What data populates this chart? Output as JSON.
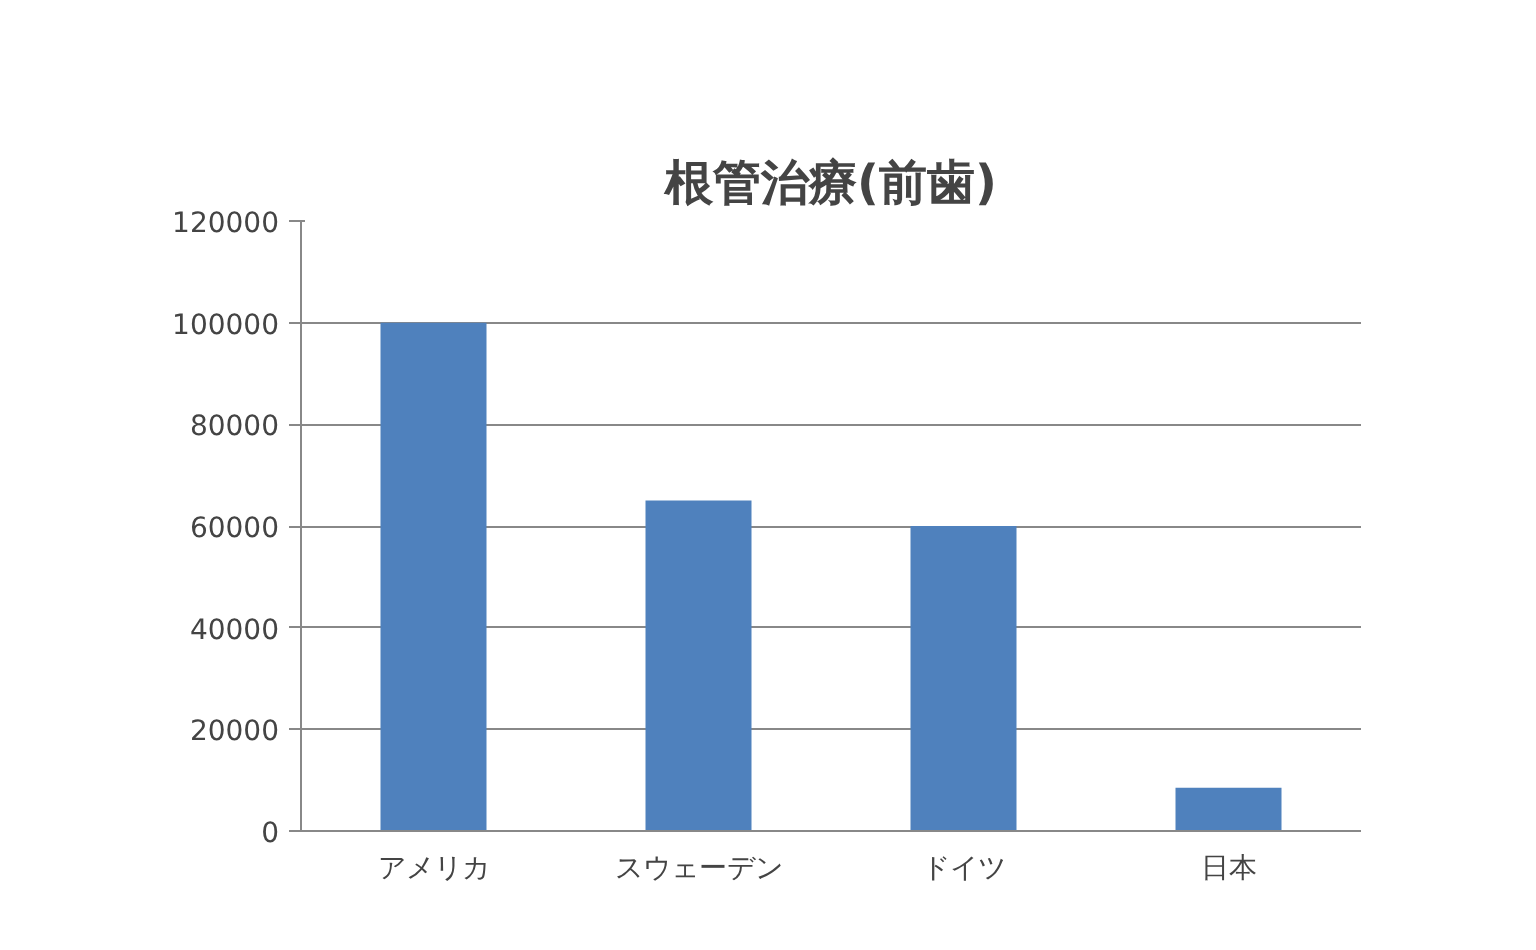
{
  "chart_data": {
    "type": "bar",
    "title": "根管治療(前歯)",
    "categories": [
      "アメリカ",
      "スウェーデン",
      "ドイツ",
      "日本"
    ],
    "values": [
      100000,
      65000,
      60000,
      8500
    ],
    "color": "#4f81bd",
    "ylim": [
      0,
      120000
    ],
    "yticks": [
      0,
      20000,
      40000,
      60000,
      80000,
      100000,
      120000
    ],
    "grid": "y"
  }
}
